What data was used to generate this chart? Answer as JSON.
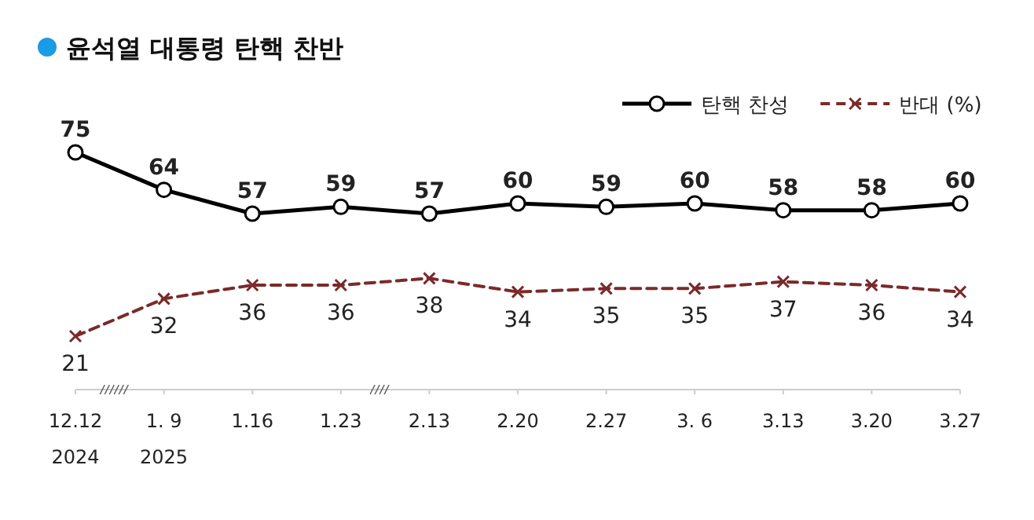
{
  "chart_data": {
    "type": "line",
    "title": "윤석열 대통령 탄핵 찬반",
    "categories": [
      "12.12\n2024",
      "1. 9\n2025",
      "1.16",
      "1.23",
      "2.13",
      "2.20",
      "2.27",
      "3. 6",
      "3.13",
      "3.20",
      "3.27"
    ],
    "series": [
      {
        "name": "탄핵 찬성",
        "color": "#000000",
        "marker": "circle",
        "line_style": "solid",
        "values": [
          75,
          64,
          57,
          59,
          57,
          60,
          59,
          60,
          58,
          58,
          60
        ]
      },
      {
        "name": "반대 (%)",
        "color": "#7a2a2a",
        "marker": "cross",
        "line_style": "dashed",
        "values": [
          21,
          32,
          36,
          36,
          38,
          34,
          35,
          35,
          37,
          36,
          34
        ]
      }
    ],
    "data_labels": true,
    "legend": "top right"
  }
}
